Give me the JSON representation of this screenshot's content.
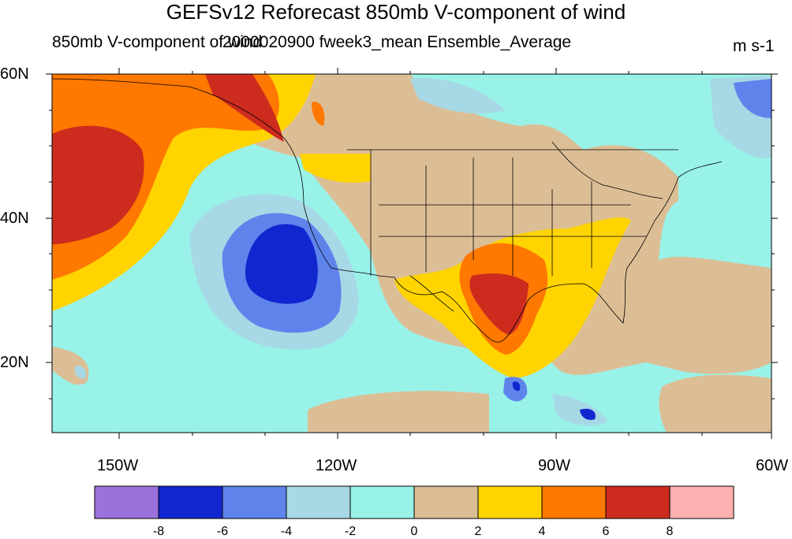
{
  "title": "GEFSv12 Reforecast 850mb V-component of wind",
  "left_subtitle": "850mb V-component of wind",
  "center_subtitle": "2000020900 fweek3_mean Ensemble_Average",
  "units": "m s-1",
  "lat_labels": [
    "60N",
    "40N",
    "20N"
  ],
  "lon_labels": [
    "150W",
    "120W",
    "90W",
    "60W"
  ],
  "colorbar": {
    "colors": [
      "#9b72dc",
      "#1226cf",
      "#5e84ec",
      "#a7d8e5",
      "#99f2e8",
      "#dcbe96",
      "#ffd400",
      "#ff7800",
      "#cc2b1e",
      "#ffb0b0"
    ],
    "labels": [
      "-8",
      "-6",
      "-4",
      "-2",
      "0",
      "2",
      "4",
      "6",
      "8"
    ]
  },
  "colors": {
    "ocean_base": "#99f2e8",
    "land_brown": "#dcbe96"
  }
}
